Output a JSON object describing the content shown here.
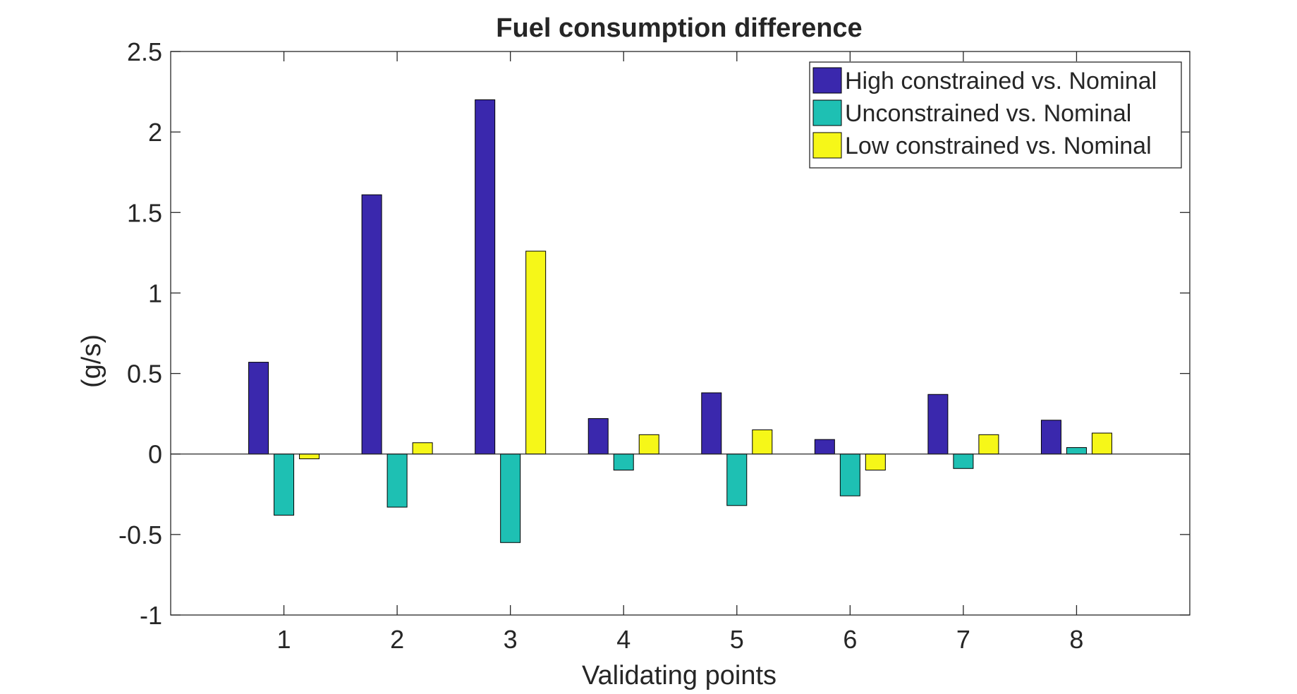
{
  "chart_data": {
    "type": "bar",
    "title": "Fuel consumption difference",
    "xlabel": "Validating points",
    "ylabel": "(g/s)",
    "categories": [
      "1",
      "2",
      "3",
      "4",
      "5",
      "6",
      "7",
      "8"
    ],
    "ylim": [
      -1,
      2.5
    ],
    "yticks": [
      "-1",
      "-0.5",
      "0",
      "0.5",
      "1",
      "1.5",
      "2",
      "2.5"
    ],
    "grid": false,
    "legend_position": "top-right",
    "series": [
      {
        "name": "High constrained vs. Nominal",
        "color": "#3a28ad",
        "values": [
          0.57,
          1.61,
          2.2,
          0.22,
          0.38,
          0.09,
          0.37,
          0.21
        ]
      },
      {
        "name": "Unconstrained vs. Nominal",
        "color": "#1ec0b3",
        "values": [
          -0.38,
          -0.33,
          -0.55,
          -0.1,
          -0.32,
          -0.26,
          -0.09,
          0.04
        ]
      },
      {
        "name": "Low constrained vs. Nominal",
        "color": "#f6f718",
        "values": [
          -0.03,
          0.07,
          1.26,
          0.12,
          0.15,
          -0.1,
          0.12,
          0.13
        ]
      }
    ]
  }
}
